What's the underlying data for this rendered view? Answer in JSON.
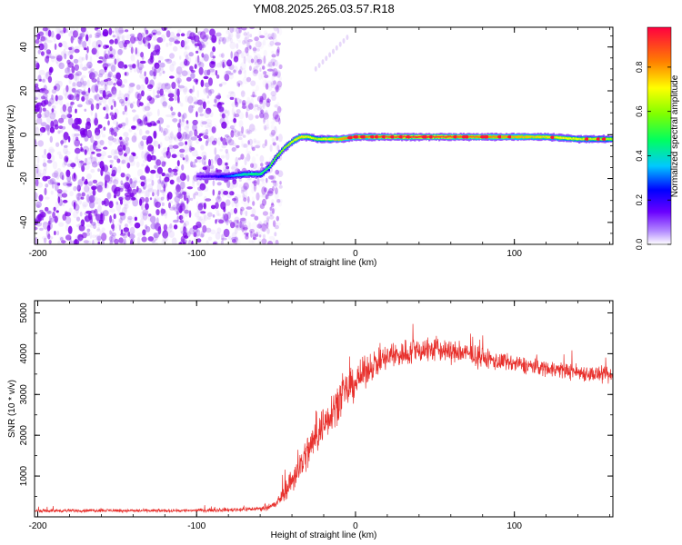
{
  "title": "YM08.2025.265.03.57.R18",
  "colors": {
    "snr_line": "#e8302c",
    "scatter_purple": "#8a2be2",
    "axis": "#000000"
  },
  "chart_data": [
    {
      "type": "heatmap",
      "title": "YM08.2025.265.03.57.R18",
      "xlabel": "Height of straight line (km)",
      "ylabel": "Frequency (Hz)",
      "xlim": [
        -202,
        162
      ],
      "ylim": [
        -50,
        49
      ],
      "xticks": [
        -200,
        -100,
        0,
        100
      ],
      "xtick_labels": [
        "-200",
        "-100",
        "0",
        "100"
      ],
      "yticks": [
        -40,
        -20,
        0,
        20,
        40
      ],
      "ytick_labels": [
        "-40",
        "-20",
        "0",
        "20",
        "40"
      ],
      "colorbar": {
        "label": "Normalized spectral amplitude",
        "range": [
          0,
          0.98
        ],
        "ticks": [
          0.0,
          0.2,
          0.4,
          0.6,
          0.8
        ],
        "tick_labels": [
          "0.0",
          "0.2",
          "0.4",
          "0.6",
          "0.8"
        ],
        "colormap": "rainbow"
      },
      "doppler_trace": {
        "x": [
          -100,
          -90,
          -80,
          -70,
          -60,
          -55,
          -50,
          -45,
          -40,
          -35,
          -30,
          -25,
          -20,
          -10,
          0,
          20,
          40,
          60,
          80,
          100,
          120,
          140,
          160
        ],
        "y": [
          -19,
          -19,
          -19,
          -18,
          -18,
          -15,
          -10,
          -6,
          -3,
          -1,
          -1,
          -2,
          -2,
          -2,
          -1,
          -1,
          -1,
          -1,
          -1,
          -1,
          -1,
          -2,
          -2
        ],
        "amplitude": [
          0.15,
          0.2,
          0.3,
          0.45,
          0.5,
          0.55,
          0.6,
          0.65,
          0.7,
          0.75,
          0.7,
          0.65,
          0.7,
          0.8,
          0.85,
          0.9,
          0.95,
          0.9,
          0.85,
          0.8,
          0.75,
          0.7,
          0.65
        ]
      },
      "noise_region": {
        "x_range": [
          -202,
          -55
        ],
        "y_range": [
          -50,
          49
        ]
      }
    },
    {
      "type": "line",
      "xlabel": "Height of straight line (km)",
      "ylabel": "SNR (10 * v/v)",
      "xlim": [
        -202,
        162
      ],
      "ylim": [
        0,
        5300
      ],
      "xticks": [
        -200,
        -100,
        0,
        100
      ],
      "xtick_labels": [
        "-200",
        "-100",
        "0",
        "100"
      ],
      "yticks": [
        1000,
        2000,
        3000,
        4000,
        5000
      ],
      "ytick_labels": [
        "1000",
        "2000",
        "3000",
        "4000",
        "5000"
      ],
      "series": [
        {
          "x": [
            -200,
            -180,
            -160,
            -140,
            -120,
            -100,
            -80,
            -60,
            -50,
            -40,
            -30,
            -20,
            -10,
            0,
            10,
            20,
            30,
            40,
            50,
            60,
            70,
            80,
            90,
            100,
            110,
            120,
            130,
            140,
            150,
            160
          ],
          "y": [
            150,
            150,
            160,
            150,
            150,
            160,
            170,
            200,
            300,
            900,
            1600,
            2300,
            2900,
            3300,
            3700,
            3900,
            4000,
            4100,
            4100,
            4050,
            4000,
            3900,
            3800,
            3750,
            3700,
            3650,
            3600,
            3550,
            3500,
            3450
          ],
          "noise_amplitude": [
            60,
            60,
            60,
            60,
            60,
            60,
            70,
            80,
            150,
            500,
            700,
            700,
            700,
            600,
            500,
            500,
            500,
            500,
            450,
            400,
            400,
            350,
            350,
            300,
            300,
            300,
            300,
            300,
            300,
            300
          ]
        }
      ]
    }
  ]
}
